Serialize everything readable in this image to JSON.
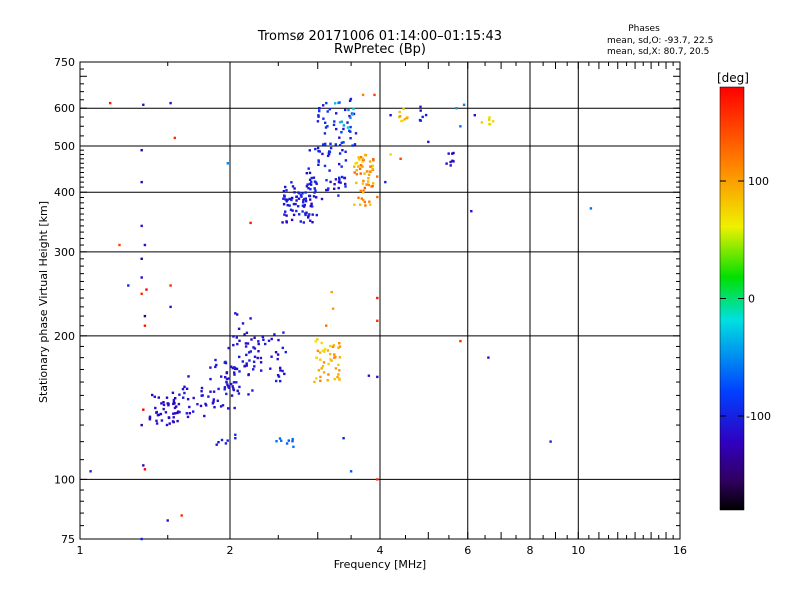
{
  "chart_data": {
    "type": "scatter",
    "title": "Tromsø 20171006 01:14:00–01:15:43",
    "subtitle": "RwPretec (Bp)",
    "stats": {
      "heading": "Phases",
      "line1": "mean, sd,O: -93.7, 22.5",
      "line2": "mean, sd,X:  80.7, 20.5"
    },
    "xlabel": "Frequency [MHz]",
    "ylabel": "Stationary phase Virtual Height [km]",
    "x_scale": "log",
    "y_scale": "log",
    "xlim": [
      1,
      16
    ],
    "ylim": [
      75,
      750
    ],
    "x_ticks": [
      1,
      2,
      4,
      6,
      8,
      10,
      16
    ],
    "y_ticks": [
      75,
      100,
      200,
      300,
      400,
      500,
      600,
      750
    ],
    "x_grid": [
      2,
      4,
      6,
      8,
      10
    ],
    "y_grid": [
      100,
      200,
      300,
      400,
      500,
      600
    ],
    "grid": true,
    "colorbar": {
      "label": "[deg]",
      "range": [
        -180,
        180
      ],
      "ticks": [
        100,
        0,
        -100
      ],
      "position": "right"
    },
    "clusters": [
      {
        "f": [
          1.38,
          1.58
        ],
        "h": [
          128,
          152
        ],
        "n": 45,
        "ph": [
          -125,
          -105
        ]
      },
      {
        "f": [
          1.55,
          1.85
        ],
        "h": [
          135,
          165
        ],
        "n": 25,
        "ph": [
          -120,
          -100
        ]
      },
      {
        "f": [
          1.8,
          2.05
        ],
        "h": [
          140,
          180
        ],
        "n": 35,
        "ph": [
          -118,
          -100
        ]
      },
      {
        "f": [
          1.95,
          2.25
        ],
        "h": [
          150,
          200
        ],
        "n": 40,
        "ph": [
          -115,
          -95
        ]
      },
      {
        "f": [
          2.15,
          2.6
        ],
        "h": [
          160,
          205
        ],
        "n": 40,
        "ph": [
          -120,
          -95
        ]
      },
      {
        "f": [
          2.0,
          2.2
        ],
        "h": [
          195,
          225
        ],
        "n": 8,
        "ph": [
          -115,
          -100
        ]
      },
      {
        "f": [
          1.88,
          1.98
        ],
        "h": [
          117,
          121
        ],
        "n": 5,
        "ph": [
          -110,
          -100
        ]
      },
      {
        "f": [
          2.45,
          2.7
        ],
        "h": [
          117,
          122
        ],
        "n": 8,
        "ph": [
          -75,
          -55
        ]
      },
      {
        "f": [
          2.95,
          3.35
        ],
        "h": [
          160,
          200
        ],
        "n": 45,
        "ph": [
          85,
          120
        ]
      },
      {
        "f": [
          2.55,
          3.0
        ],
        "h": [
          345,
          420
        ],
        "n": 80,
        "ph": [
          -120,
          -90
        ]
      },
      {
        "f": [
          2.85,
          3.45
        ],
        "h": [
          380,
          500
        ],
        "n": 55,
        "ph": [
          -115,
          -85
        ]
      },
      {
        "f": [
          3.0,
          3.6
        ],
        "h": [
          500,
          630
        ],
        "n": 45,
        "ph": [
          -110,
          -80
        ]
      },
      {
        "f": [
          3.2,
          3.55
        ],
        "h": [
          540,
          620
        ],
        "n": 10,
        "ph": [
          -60,
          -20
        ]
      },
      {
        "f": [
          3.55,
          3.95
        ],
        "h": [
          375,
          480
        ],
        "n": 60,
        "ph": [
          85,
          140
        ]
      },
      {
        "f": [
          4.35,
          4.55
        ],
        "h": [
          560,
          600
        ],
        "n": 10,
        "ph": [
          85,
          110
        ]
      },
      {
        "f": [
          4.8,
          5.0
        ],
        "h": [
          560,
          610
        ],
        "n": 6,
        "ph": [
          -110,
          -95
        ]
      },
      {
        "f": [
          5.4,
          5.65
        ],
        "h": [
          455,
          485
        ],
        "n": 8,
        "ph": [
          -120,
          -100
        ]
      },
      {
        "f": [
          6.35,
          6.75
        ],
        "h": [
          555,
          575
        ],
        "n": 6,
        "ph": [
          75,
          95
        ]
      }
    ],
    "scattered_points": [
      [
        1.34,
        610,
        -110
      ],
      [
        1.33,
        490,
        -130
      ],
      [
        1.33,
        420,
        -125
      ],
      [
        1.33,
        340,
        -110
      ],
      [
        1.35,
        310,
        -110
      ],
      [
        1.33,
        290,
        -135
      ],
      [
        1.33,
        265,
        -115
      ],
      [
        1.33,
        245,
        160
      ],
      [
        1.36,
        250,
        180
      ],
      [
        1.35,
        220,
        -140
      ],
      [
        1.35,
        210,
        170
      ],
      [
        1.34,
        140,
        190
      ],
      [
        1.33,
        130,
        -130
      ],
      [
        1.34,
        107,
        -120
      ],
      [
        1.35,
        105,
        180
      ],
      [
        1.33,
        75,
        -100
      ],
      [
        1.15,
        615,
        170
      ],
      [
        1.2,
        310,
        150
      ],
      [
        1.25,
        255,
        -100
      ],
      [
        1.52,
        615,
        -110
      ],
      [
        1.55,
        520,
        160
      ],
      [
        1.52,
        255,
        160
      ],
      [
        1.52,
        230,
        -110
      ],
      [
        1.05,
        104,
        -100
      ],
      [
        1.5,
        82,
        -110
      ],
      [
        1.6,
        84,
        160
      ],
      [
        1.98,
        460,
        -50
      ],
      [
        2.2,
        345,
        170
      ],
      [
        2.05,
        124,
        -90
      ],
      [
        2.05,
        122,
        -100
      ],
      [
        3.38,
        122,
        -100
      ],
      [
        3.5,
        104,
        -70
      ],
      [
        3.95,
        100,
        160
      ],
      [
        3.95,
        240,
        170
      ],
      [
        3.95,
        215,
        160
      ],
      [
        3.8,
        165,
        -110
      ],
      [
        3.95,
        164,
        -110
      ],
      [
        3.2,
        247,
        110
      ],
      [
        3.22,
        228,
        110
      ],
      [
        3.12,
        210,
        130
      ],
      [
        5.8,
        195,
        160
      ],
      [
        6.1,
        365,
        -110
      ],
      [
        6.6,
        180,
        -110
      ],
      [
        8.8,
        120,
        -100
      ],
      [
        10.6,
        370,
        -60
      ],
      [
        5.9,
        610,
        -50
      ],
      [
        5.8,
        550,
        -60
      ],
      [
        5.7,
        600,
        -40
      ],
      [
        4.2,
        480,
        90
      ],
      [
        4.4,
        470,
        150
      ],
      [
        3.9,
        640,
        150
      ],
      [
        3.7,
        640,
        120
      ],
      [
        4.1,
        420,
        -100
      ],
      [
        4.2,
        580,
        -110
      ],
      [
        6.2,
        580,
        -110
      ],
      [
        5.0,
        510,
        -110
      ]
    ]
  }
}
